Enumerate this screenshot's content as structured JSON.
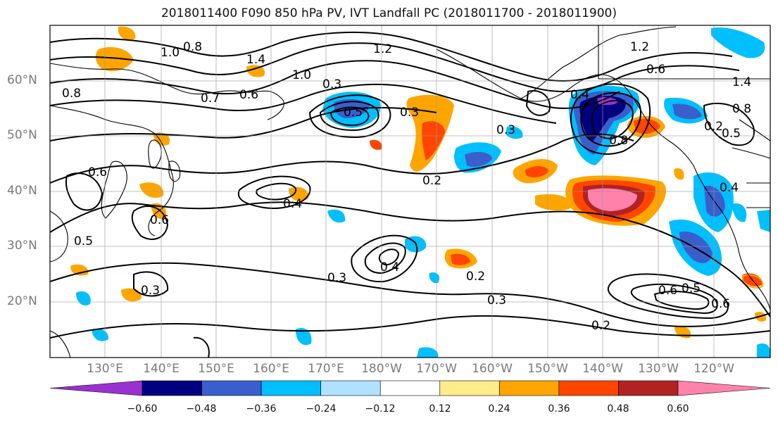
{
  "title": "2018011400 F090 850 hPa PV, IVT Landfall PC (2018011700 - 2018011900)",
  "lat_ticks": [
    "60°N",
    "50°N",
    "40°N",
    "30°N",
    "20°N"
  ],
  "lon_ticks": [
    "130°E",
    "140°E",
    "150°E",
    "160°E",
    "170°E",
    "180°W",
    "170°W",
    "160°W",
    "150°W",
    "140°W",
    "130°W",
    "120°W"
  ],
  "colorbar": {
    "ticks": [
      "−0.60",
      "−0.48",
      "−0.36",
      "−0.24",
      "−0.12",
      "0.12",
      "0.24",
      "0.36",
      "0.48",
      "0.60"
    ],
    "colors": [
      "#9b30d0",
      "#000080",
      "#3a5fcd",
      "#00bfff",
      "#b0e2ff",
      "#ffffff",
      "#ffec8b",
      "#ffa500",
      "#ff4500",
      "#b22222",
      "#ff82ab"
    ]
  },
  "contour_labels": [
    "1.2",
    "1.0",
    "1.4",
    "1.0",
    "0.8",
    "0.8",
    "0.7",
    "0.6",
    "0.3",
    "0.5",
    "0.3",
    "0.2",
    "0.3",
    "0.2",
    "0.4",
    "0.5",
    "0.4",
    "0.6",
    "0.8",
    "0.6",
    "0.3",
    "0.4",
    "0.3",
    "0.2",
    "0.3",
    "0.2",
    "0.6",
    "0.5",
    "0.6",
    "0.4",
    "0.5",
    "0.8",
    "1.4",
    "0.6",
    "1.2"
  ]
}
